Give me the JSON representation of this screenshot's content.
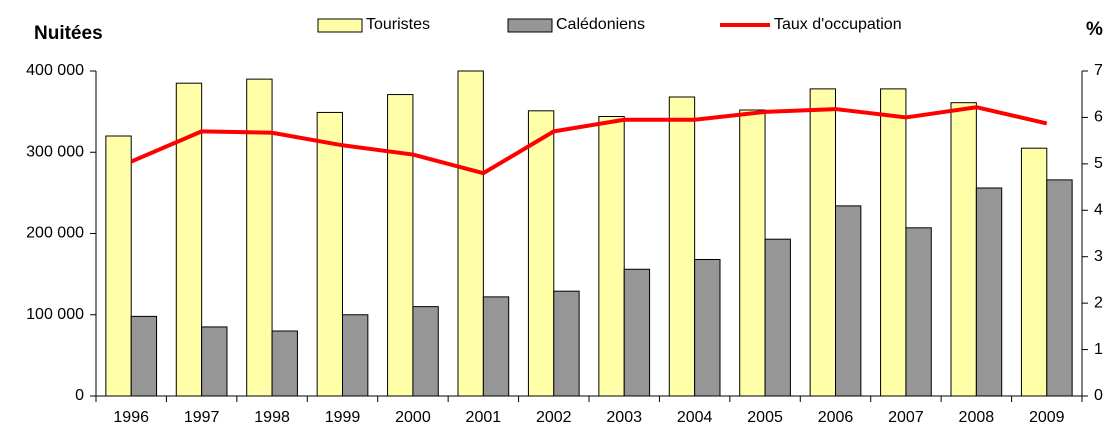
{
  "chart_data": {
    "type": "bar",
    "ylabel": "Nuitées",
    "y2label": "%",
    "categories": [
      "1996",
      "1997",
      "1998",
      "1999",
      "2000",
      "2001",
      "2002",
      "2003",
      "2004",
      "2005",
      "2006",
      "2007",
      "2008",
      "2009"
    ],
    "series": [
      {
        "name": "Touristes",
        "color": "#ffffa8",
        "values": [
          320000,
          385000,
          390000,
          349000,
          371000,
          400000,
          351000,
          344000,
          368000,
          352000,
          378000,
          378000,
          361000,
          305000
        ]
      },
      {
        "name": "Calédoniens",
        "color": "#969696",
        "values": [
          98000,
          85000,
          80000,
          100000,
          110000,
          122000,
          129000,
          156000,
          168000,
          193000,
          234000,
          207000,
          256000,
          266000
        ]
      },
      {
        "name": "Taux d'occupation",
        "color": "#ff0000",
        "axis": "y2",
        "type": "line",
        "values": [
          5.05,
          5.7,
          5.67,
          5.4,
          5.2,
          4.8,
          5.7,
          5.95,
          5.95,
          6.12,
          6.18,
          6.0,
          6.22,
          5.87
        ]
      }
    ],
    "ylim": [
      0,
      400000
    ],
    "yticks": [
      0,
      {
        "value": 100000,
        "label": "100 000"
      },
      {
        "value": 200000,
        "label": "200 000"
      },
      {
        "value": 300000,
        "label": "300 000"
      },
      {
        "value": 400000,
        "label": "400 000"
      }
    ],
    "y2lim": [
      0,
      7
    ],
    "y2ticks": [
      0,
      1,
      2,
      3,
      4,
      5,
      6,
      7
    ],
    "grid": false,
    "legend": "top"
  }
}
